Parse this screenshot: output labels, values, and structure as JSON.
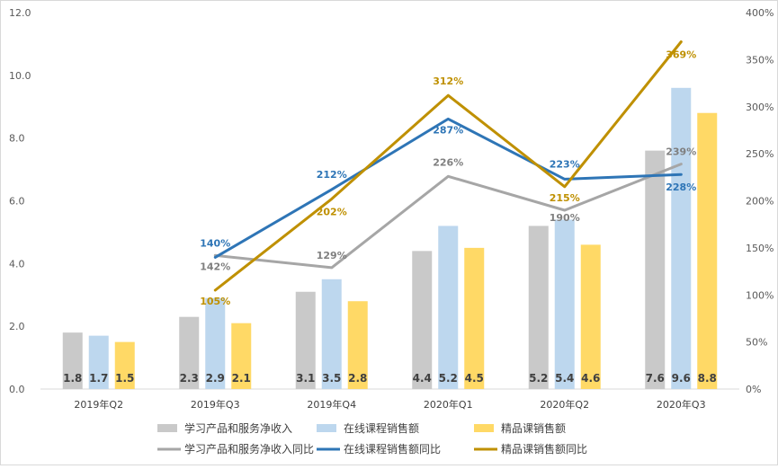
{
  "chart_data": {
    "type": "bar",
    "categories": [
      "2019年Q2",
      "2019年Q3",
      "2019年Q4",
      "2020年Q1",
      "2020年Q2",
      "2020年Q3"
    ],
    "ylim": [
      0,
      12
    ],
    "y2lim": [
      0,
      400
    ],
    "yticks": [
      "0.0",
      "2.0",
      "4.0",
      "6.0",
      "8.0",
      "10.0",
      "12.0"
    ],
    "y2ticks": [
      "0%",
      "50%",
      "100%",
      "150%",
      "200%",
      "250%",
      "300%",
      "350%",
      "400%"
    ],
    "series": [
      {
        "name": "学习产品和服务净收入",
        "kind": "bar",
        "axis": "left",
        "color": "#c9c9c9",
        "values": [
          1.8,
          2.3,
          3.1,
          4.4,
          5.2,
          7.6
        ],
        "labels": [
          "1.8",
          "2.3",
          "3.1",
          "4.4",
          "5.2",
          "7.6"
        ]
      },
      {
        "name": "在线课程销售额",
        "kind": "bar",
        "axis": "left",
        "color": "#bdd7ee",
        "values": [
          1.7,
          2.9,
          3.5,
          5.2,
          5.4,
          9.6
        ],
        "labels": [
          "1.7",
          "2.9",
          "3.5",
          "5.2",
          "5.4",
          "9.6"
        ]
      },
      {
        "name": "精品课销售额",
        "kind": "bar",
        "axis": "left",
        "color": "#ffd966",
        "values": [
          1.5,
          2.1,
          2.8,
          4.5,
          4.6,
          8.8
        ],
        "labels": [
          "1.5",
          "2.1",
          "2.8",
          "4.5",
          "4.6",
          "8.8"
        ]
      },
      {
        "name": "学习产品和服务净收入同比",
        "kind": "line",
        "axis": "right",
        "color": "#a6a6a6",
        "label_color": "#7f7f7f",
        "values": [
          null,
          142,
          129,
          226,
          190,
          239
        ],
        "labels": [
          "",
          "142%",
          "129%",
          "226%",
          "190%",
          "239%"
        ]
      },
      {
        "name": "在线课程销售额同比",
        "kind": "line",
        "axis": "right",
        "color": "#2e75b6",
        "label_color": "#2e75b6",
        "values": [
          null,
          140,
          212,
          287,
          223,
          228
        ],
        "labels": [
          "",
          "140%",
          "212%",
          "287%",
          "223%",
          "228%"
        ]
      },
      {
        "name": "精品课销售额同比",
        "kind": "line",
        "axis": "right",
        "color": "#bf9000",
        "label_color": "#bf9000",
        "values": [
          null,
          105,
          202,
          312,
          215,
          369
        ],
        "labels": [
          "",
          "105%",
          "202%",
          "312%",
          "215%",
          "369%"
        ]
      }
    ],
    "legend_position": "bottom"
  }
}
